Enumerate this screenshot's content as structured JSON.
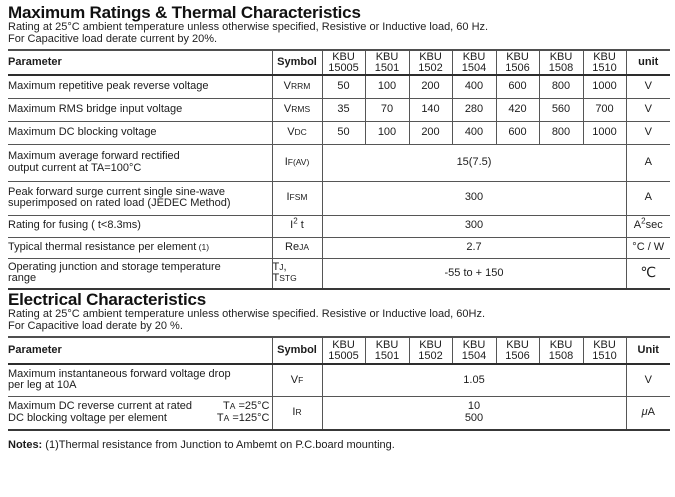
{
  "palette": {
    "background": "#ffffff",
    "text": "#1a1a1a",
    "border": "#4d4d4d"
  },
  "section1": {
    "title": "Maximum Ratings & Thermal Characteristics",
    "subtitle1": "Rating at 25°C ambient temperature unless otherwise specified, Resistive or Inductive load, 60 Hz.",
    "subtitle2": "For Capacitive load derate current by 20%."
  },
  "table1": {
    "col_param": "Parameter",
    "col_symbol": "Symbol",
    "col_unit": "unit",
    "models": [
      [
        "KBU",
        "15005"
      ],
      [
        "KBU",
        "1501"
      ],
      [
        "KBU",
        "1502"
      ],
      [
        "KBU",
        "1504"
      ],
      [
        "KBU",
        "1506"
      ],
      [
        "KBU",
        "1508"
      ],
      [
        "KBU",
        "1510"
      ]
    ],
    "rows": {
      "r1": {
        "param": "Maximum repetitive peak reverse voltage",
        "sym": [
          {
            "t": "V"
          },
          {
            "t": "RRM",
            "c": "sm"
          }
        ],
        "vals": [
          "50",
          "100",
          "200",
          "400",
          "600",
          "800",
          "1000"
        ],
        "unit": "V"
      },
      "r2": {
        "param": "Maximum RMS bridge input voltage",
        "sym": [
          {
            "t": "V"
          },
          {
            "t": "RMS",
            "c": "sm"
          }
        ],
        "vals": [
          "35",
          "70",
          "140",
          "280",
          "420",
          "560",
          "700"
        ],
        "unit": "V"
      },
      "r3": {
        "param": "Maximum DC blocking voltage",
        "sym": [
          {
            "t": "V"
          },
          {
            "t": "DC",
            "c": "sm"
          }
        ],
        "vals": [
          "50",
          "100",
          "200",
          "400",
          "600",
          "800",
          "1000"
        ],
        "unit": "V"
      },
      "r4": {
        "param_line1": "Maximum average forward rectified",
        "param_line2": "output current at TA=100°C",
        "sym": [
          {
            "t": "I"
          },
          {
            "t": "F(AV)",
            "c": "sm"
          }
        ],
        "value": "15(7.5)",
        "unit": "A"
      },
      "r5": {
        "param_line1": "Peak forward surge current single sine-wave",
        "param_line2": "superimposed on rated load (JEDEC Method)",
        "sym": [
          {
            "t": "I"
          },
          {
            "t": "FSM",
            "c": "sm"
          }
        ],
        "value": "300",
        "unit": "A"
      },
      "r6": {
        "param": "Rating for fusing ( t<8.3ms)",
        "sym": [
          {
            "t": "I"
          },
          {
            "t": "2",
            "c": "sup"
          },
          {
            "t": " t"
          }
        ],
        "value": "300",
        "unit": [
          {
            "t": "A"
          },
          {
            "t": "2",
            "c": "sup"
          },
          {
            "t": "sec"
          }
        ]
      },
      "r7": {
        "param": [
          {
            "t": "Typical  thermal resistance per element"
          },
          {
            "t": " (1)",
            "c": "sm"
          }
        ],
        "sym": [
          {
            "t": "Re"
          },
          {
            "t": "JA",
            "c": "sm"
          }
        ],
        "value": "2.7",
        "unit": "°C / W"
      },
      "r8": {
        "param_line1": "Operating junction and storage temperature",
        "param_line2": "range",
        "sym_line1": [
          {
            "t": "T"
          },
          {
            "t": "J",
            "c": "sm"
          },
          {
            "t": ","
          }
        ],
        "sym_line2": [
          {
            "t": "T"
          },
          {
            "t": "STG",
            "c": "sm"
          }
        ],
        "value": "-55 to + 150",
        "unit": [
          {
            "t": "℃",
            "c": "big"
          }
        ]
      }
    }
  },
  "section2": {
    "title": "Electrical Characteristics",
    "subtitle1": "Rating at 25°C ambient temperature unless otherwise specified. Resistive or Inductive load, 60Hz.",
    "subtitle2": "For Capacitive load derate by 20 %."
  },
  "table2": {
    "col_param": "Parameter",
    "col_symbol": "Symbol",
    "col_unit": "Unit",
    "models": [
      [
        "KBU",
        "15005"
      ],
      [
        "KBU",
        "1501"
      ],
      [
        "KBU",
        "1502"
      ],
      [
        "KBU",
        "1504"
      ],
      [
        "KBU",
        "1506"
      ],
      [
        "KBU",
        "1508"
      ],
      [
        "KBU",
        "1510"
      ]
    ],
    "rows": {
      "r1": {
        "param_line1": "Maximum instantaneous forward voltage drop",
        "param_line2": "per leg at 10A",
        "sym": [
          {
            "t": "V"
          },
          {
            "t": "F",
            "c": "sm"
          }
        ],
        "value": "1.05",
        "unit": "V"
      },
      "r2": {
        "param_line1_left": "Maximum DC reverse current at rated",
        "param_line1_right": [
          {
            "t": "T"
          },
          {
            "t": "A",
            "c": "sm"
          },
          {
            "t": " =25°C"
          }
        ],
        "param_line2_left": "DC blocking voltage per element",
        "param_line2_right": [
          {
            "t": "T"
          },
          {
            "t": "A",
            "c": "sm"
          },
          {
            "t": " =125°C"
          }
        ],
        "sym": [
          {
            "t": "I"
          },
          {
            "t": "R",
            "c": "sm"
          }
        ],
        "value_line1": "10",
        "value_line2": "500",
        "unit": [
          {
            "t": "μ",
            "c": "it"
          },
          {
            "t": "A"
          }
        ]
      }
    }
  },
  "notes": {
    "label": "Notes:",
    "text": " (1)Thermal resistance from Junction to Ambemt on P.C.board mounting."
  }
}
